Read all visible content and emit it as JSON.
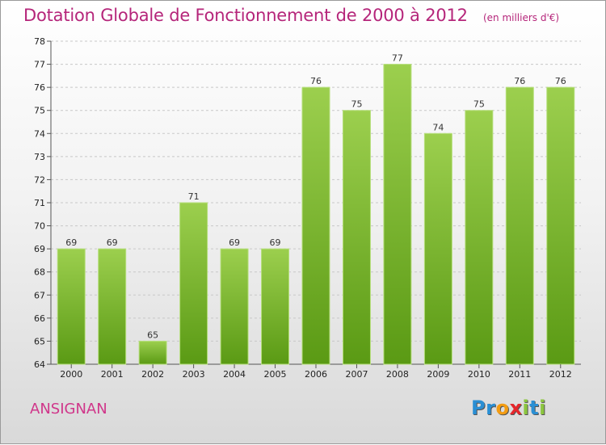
{
  "title": "Dotation Globale de Fonctionnement de 2000 à 2012",
  "subtitle": "(en milliers d'€)",
  "commune": "ANSIGNAN",
  "logo": {
    "text": "Proxiti",
    "letters": [
      {
        "ch": "P",
        "color": "#2a8fd4"
      },
      {
        "ch": "r",
        "color": "#2a8fd4"
      },
      {
        "ch": "o",
        "color": "#f39c12"
      },
      {
        "ch": "x",
        "color": "#e5262b"
      },
      {
        "ch": "i",
        "color": "#8cc63f"
      },
      {
        "ch": "t",
        "color": "#2a8fd4"
      },
      {
        "ch": "i",
        "color": "#8cc63f"
      }
    ]
  },
  "colors": {
    "title": "#b5257a",
    "bar_top": "#9ccf4e",
    "bar_bottom": "#5a9a14",
    "grid": "#c8c8c8"
  },
  "chart_data": {
    "type": "bar",
    "title": "Dotation Globale de Fonctionnement de 2000 à 2012",
    "subtitle": "(en milliers d'€)",
    "categories": [
      "2000",
      "2001",
      "2002",
      "2003",
      "2004",
      "2005",
      "2006",
      "2007",
      "2008",
      "2009",
      "2010",
      "2011",
      "2012"
    ],
    "values": [
      69,
      69,
      65,
      71,
      69,
      69,
      76,
      75,
      77,
      74,
      75,
      76,
      76
    ],
    "ylim": [
      64,
      78
    ],
    "yticks": [
      64,
      65,
      66,
      67,
      68,
      69,
      70,
      71,
      72,
      73,
      74,
      75,
      76,
      77,
      78
    ],
    "grid": true,
    "xlabel": "",
    "ylabel": ""
  }
}
